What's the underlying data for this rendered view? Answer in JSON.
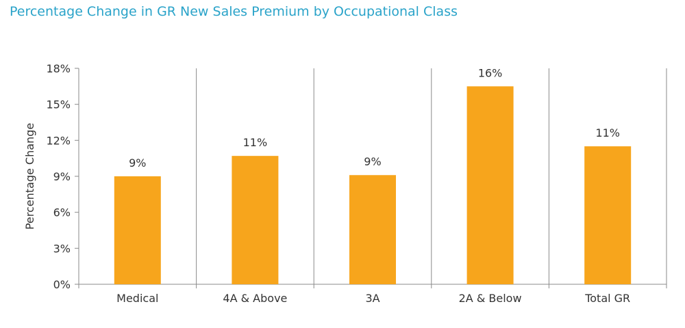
{
  "chart_data": {
    "type": "bar",
    "title": "Percentage Change in GR New Sales Premium by Occupational Class",
    "ylabel": "Percentage Change",
    "xlabel": "",
    "categories": [
      "Medical",
      "4A & Above",
      "3A",
      "2A & Below",
      "Total GR"
    ],
    "values": [
      9,
      10.7,
      9.1,
      16.5,
      11.5
    ],
    "data_labels": [
      "9%",
      "11%",
      "9%",
      "16%",
      "11%"
    ],
    "ylim": [
      0,
      18
    ],
    "yticks": [
      0,
      3,
      6,
      9,
      12,
      15,
      18
    ],
    "ytick_labels": [
      "0%",
      "3%",
      "6%",
      "9%",
      "12%",
      "15%",
      "18%"
    ],
    "bar_color": "#f7a51c",
    "grid": "vertical separators between categories",
    "legend": "none"
  }
}
